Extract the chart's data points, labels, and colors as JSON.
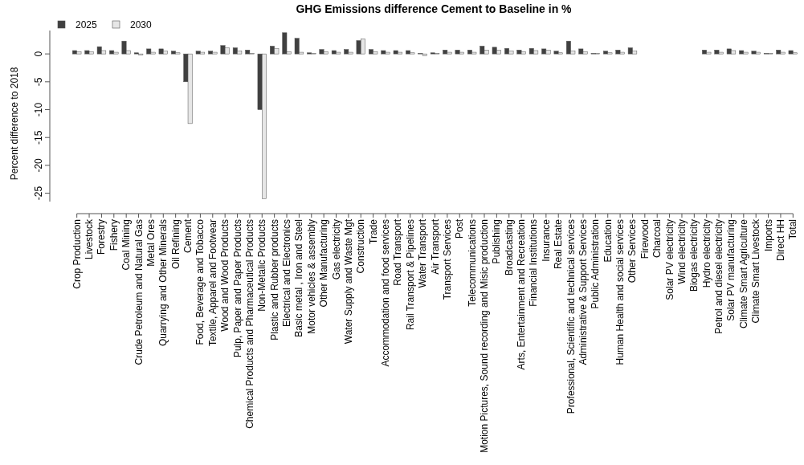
{
  "chart_data": {
    "type": "bar",
    "title": "GHG Emissions difference Cement to Baseline in %",
    "ylabel": "Percent difference to 2018",
    "categories": [
      "Crop Production",
      "Livestock",
      "Forestry",
      "Fishery",
      "Coal Mining",
      "Crude Petroleum and Natural Gas",
      "Metal Ores",
      "Quarrying and Other Minerals",
      "Oil Refining",
      "Cement",
      "Food, Beverage and Tobacco",
      "Textile, Apparel and Footwear",
      "Wood and Wood Products",
      "Pulp, Paper and Paper  Products",
      "Chemical Products and Pharmaceutical Products",
      "Non-Metalic Products",
      "Plastic and Rubber products",
      "Electrical and Electronics",
      "Basic metal , Iron and Steel",
      "Motor vehicles &  assembly",
      "Other Manufacturing",
      "Gas electricity",
      "Water Supply and Waste Mgt",
      "Construction",
      "Trade",
      "Accommodation and food services",
      "Road Transport",
      "Rail Transport & Pipelines",
      "Water Transport",
      "Air Transport",
      "Transport Services",
      "Post",
      "Telecommunications",
      "Motion Pictures, Sound recording and Misic production",
      "Publishing",
      "Broadcasting",
      "Arts, Entertainment and Recreation",
      "Financial Institutions",
      "Insurance",
      "Real Estate",
      "Professional, Scientific and technical services",
      "Administrative & Support Services",
      "Public Administration",
      "Education",
      "Human Health and social services",
      "Other Services",
      "Firewood",
      "Charcoal",
      "Solar PV electricity",
      "Wind electricity",
      "Biogas electricity",
      "Hydro electricity",
      "Petrol and diesel electricity",
      "Solar PV manufacturing",
      "Climate Smart Agriculture",
      "Climate Smart Livestock",
      "Imports",
      "Direct HH",
      "Total"
    ],
    "series": [
      {
        "name": "2025",
        "color": "#404040",
        "values": [
          0.6,
          0.6,
          1.3,
          0.6,
          2.3,
          0.2,
          0.9,
          0.9,
          0.5,
          -5,
          0.5,
          0.5,
          1.5,
          1.1,
          0.7,
          -10,
          1.4,
          3.8,
          2.8,
          0.2,
          0.8,
          0.6,
          0.8,
          2.4,
          0.8,
          0.6,
          0.6,
          0.6,
          0.1,
          0.2,
          0.7,
          0.7,
          0.7,
          1.4,
          1.2,
          1.0,
          0.7,
          1.0,
          0.9,
          0.5,
          2.3,
          0.9,
          0.1,
          0.5,
          0.7,
          1.1,
          0,
          0,
          0,
          0,
          0,
          0.7,
          0.7,
          0.9,
          0.6,
          0.5,
          0.1,
          0.7,
          0.6
        ]
      },
      {
        "name": "2030",
        "color": "#e6e6e6",
        "values": [
          0.4,
          0.4,
          0.6,
          0.3,
          0.6,
          -0.2,
          0.3,
          0.5,
          0.2,
          -12.5,
          0.3,
          0.3,
          1.1,
          0.5,
          0.1,
          -26,
          1.0,
          0.4,
          0.3,
          0.1,
          0.4,
          0.3,
          0.3,
          2.7,
          0.4,
          0.3,
          0.3,
          0.2,
          -0.3,
          0.1,
          0.3,
          0.3,
          0.3,
          0.7,
          0.7,
          0.5,
          0.4,
          0.6,
          0.7,
          0.2,
          0.5,
          0.4,
          0.1,
          0.2,
          0.3,
          0.5,
          0,
          0,
          0,
          0,
          0,
          0.3,
          0.3,
          0.6,
          0.3,
          0.3,
          0.1,
          0.3,
          0.2
        ]
      }
    ],
    "ylim": [
      -26.5,
      4.2
    ],
    "yticks": [
      0,
      -5,
      -10,
      -15,
      -20,
      -25
    ],
    "legend": "top left",
    "grid": false
  }
}
